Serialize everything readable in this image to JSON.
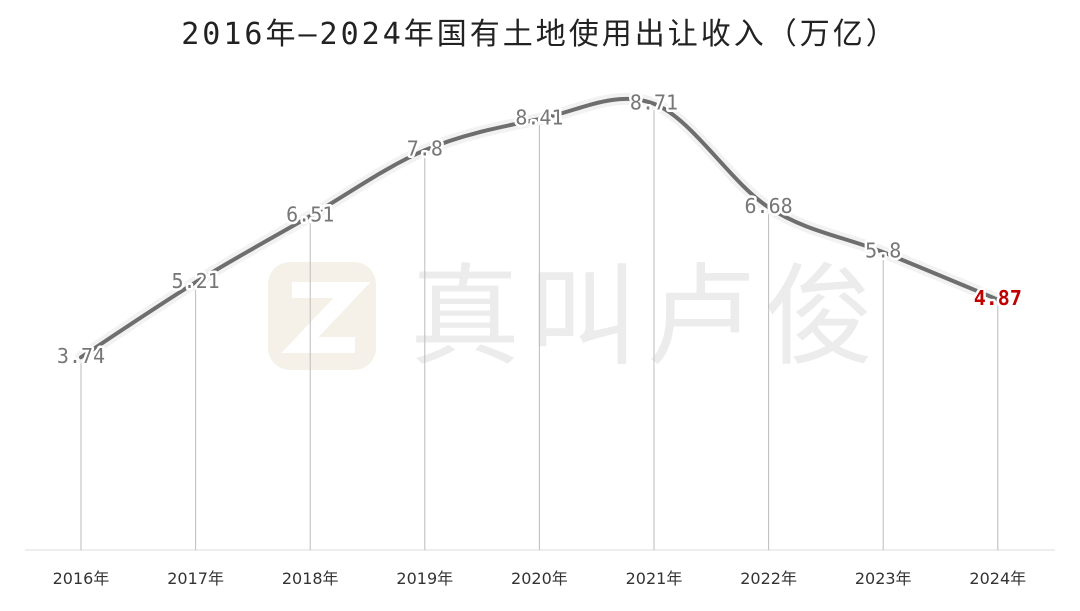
{
  "chart_data": {
    "type": "line",
    "title": "2016年—2024年国有土地使用出让收入（万亿）",
    "watermark": "真叫卢俊",
    "categories": [
      "2016年",
      "2017年",
      "2018年",
      "2019年",
      "2020年",
      "2021年",
      "2022年",
      "2023年",
      "2024年"
    ],
    "values": [
      3.74,
      5.21,
      6.51,
      7.8,
      8.41,
      8.71,
      6.68,
      5.8,
      4.87
    ],
    "color": "#6e6e6e",
    "label_colors": [
      "#777777",
      "#777777",
      "#777777",
      "#777777",
      "#777777",
      "#777777",
      "#777777",
      "#777777",
      "#c00000"
    ]
  }
}
